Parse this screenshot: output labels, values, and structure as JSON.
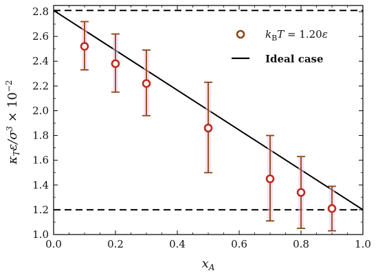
{
  "chart_data": {
    "type": "scatter",
    "xlabel": "x_A",
    "ylabel": "κ_T ε/σ³ × 10⁻²",
    "xlim": [
      0.0,
      1.0
    ],
    "ylim": [
      1.0,
      2.85
    ],
    "xticks": [
      "0.0",
      "0.2",
      "0.4",
      "0.6",
      "0.8",
      "1.0"
    ],
    "yticks": [
      "1.0",
      "1.2",
      "1.4",
      "1.6",
      "1.8",
      "2.0",
      "2.2",
      "2.4",
      "2.6",
      "2.8"
    ],
    "series": [
      {
        "name": "k_B T = 1.20ε",
        "marker": "open-circle",
        "color": "#c0281e",
        "errorbar_color": "#8b4513",
        "x": [
          0.1,
          0.2,
          0.3,
          0.5,
          0.7,
          0.8,
          0.9
        ],
        "y": [
          2.52,
          2.38,
          2.22,
          1.86,
          1.45,
          1.34,
          1.21
        ],
        "yerr_low": [
          2.33,
          2.15,
          1.96,
          1.5,
          1.11,
          1.05,
          1.03
        ],
        "yerr_high": [
          2.72,
          2.62,
          2.49,
          2.23,
          1.8,
          1.63,
          1.39
        ]
      }
    ],
    "lines": [
      {
        "kind": "solid",
        "x": [
          0.0,
          1.0
        ],
        "y": [
          2.81,
          1.2
        ],
        "color": "#000000"
      },
      {
        "kind": "dashed",
        "name": "Ideal case",
        "y": 2.81,
        "color": "#000000"
      },
      {
        "kind": "dashed",
        "y": 1.2,
        "color": "#000000"
      }
    ],
    "legend": {
      "position": "top-right",
      "entries": [
        {
          "label_main": "k",
          "label_sub": "B",
          "label_rest": "T = 1.20ε",
          "marker": "open-circle"
        },
        {
          "label": "Ideal case",
          "marker": "dashed-line"
        }
      ]
    }
  }
}
